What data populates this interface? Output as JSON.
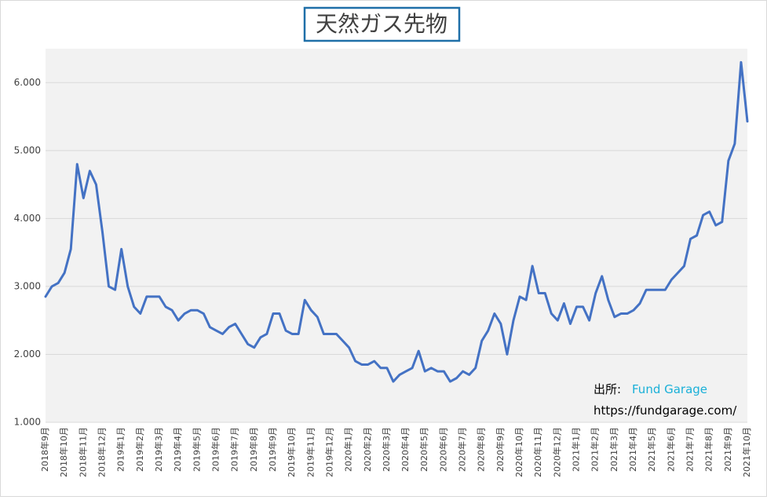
{
  "chart_data": {
    "type": "line",
    "title": "天然ガス先物",
    "categories": [
      "2018年9月",
      null,
      null,
      "2018年10月",
      null,
      null,
      "2018年11月",
      null,
      null,
      "2018年12月",
      null,
      null,
      "2019年1月",
      null,
      null,
      "2019年2月",
      null,
      null,
      "2019年3月",
      null,
      null,
      "2019年4月",
      null,
      null,
      "2019年5月",
      null,
      null,
      "2019年6月",
      null,
      null,
      "2019年7月",
      null,
      null,
      "2019年8月",
      null,
      null,
      "2019年9月",
      null,
      null,
      "2019年10月",
      null,
      null,
      "2019年11月",
      null,
      null,
      "2019年12月",
      null,
      null,
      "2020年1月",
      null,
      null,
      "2020年2月",
      null,
      null,
      "2020年3月",
      null,
      null,
      "2020年4月",
      null,
      null,
      "2020年5月",
      null,
      null,
      "2020年6月",
      null,
      null,
      "2020年7月",
      null,
      null,
      "2020年8月",
      null,
      null,
      "2020年9月",
      null,
      null,
      "2020年10月",
      null,
      null,
      "2020年11月",
      null,
      null,
      "2020年12月",
      null,
      null,
      "2021年1月",
      null,
      null,
      "2021年2月",
      null,
      null,
      "2021年3月",
      null,
      null,
      "2021年4月",
      null,
      null,
      "2021年5月",
      null,
      null,
      "2021年6月",
      null,
      null,
      "2021年7月",
      null,
      null,
      "2021年8月",
      null,
      null,
      "2021年9月",
      null,
      null,
      "2021年10月"
    ],
    "series": [
      {
        "name": "天然ガス先物",
        "color": "#4472c4",
        "values": [
          2.85,
          3.0,
          3.05,
          3.2,
          3.55,
          4.8,
          4.3,
          4.7,
          4.5,
          3.8,
          3.0,
          2.95,
          3.55,
          3.0,
          2.7,
          2.6,
          2.85,
          2.85,
          2.85,
          2.7,
          2.65,
          2.5,
          2.6,
          2.65,
          2.65,
          2.6,
          2.4,
          2.35,
          2.3,
          2.4,
          2.45,
          2.3,
          2.15,
          2.1,
          2.25,
          2.3,
          2.6,
          2.6,
          2.35,
          2.3,
          2.3,
          2.8,
          2.65,
          2.55,
          2.3,
          2.3,
          2.3,
          2.2,
          2.1,
          1.9,
          1.85,
          1.85,
          1.9,
          1.8,
          1.8,
          1.6,
          1.7,
          1.75,
          1.8,
          2.05,
          1.75,
          1.8,
          1.75,
          1.75,
          1.6,
          1.65,
          1.75,
          1.7,
          1.8,
          2.2,
          2.35,
          2.6,
          2.45,
          2.0,
          2.5,
          2.85,
          2.8,
          3.3,
          2.9,
          2.9,
          2.6,
          2.5,
          2.75,
          2.45,
          2.7,
          2.7,
          2.5,
          2.9,
          3.15,
          2.8,
          2.55,
          2.6,
          2.6,
          2.65,
          2.75,
          2.95,
          2.95,
          2.95,
          2.95,
          3.1,
          3.2,
          3.3,
          3.7,
          3.75,
          4.05,
          4.1,
          3.9,
          3.95,
          4.85,
          5.1,
          6.3,
          5.43
        ]
      }
    ],
    "ylim": [
      1,
      6.5
    ],
    "yticks": [
      {
        "value": 1,
        "label": "1.000"
      },
      {
        "value": 2,
        "label": "2.000"
      },
      {
        "value": 3,
        "label": "3.000"
      },
      {
        "value": 4,
        "label": "4.000"
      },
      {
        "value": 5,
        "label": "5.000"
      },
      {
        "value": 6,
        "label": "6.000"
      }
    ],
    "grid": true,
    "annotations": {
      "source_label": "出所:",
      "source_name": "Fund Garage",
      "url": "https://fundgarage.com/"
    }
  }
}
